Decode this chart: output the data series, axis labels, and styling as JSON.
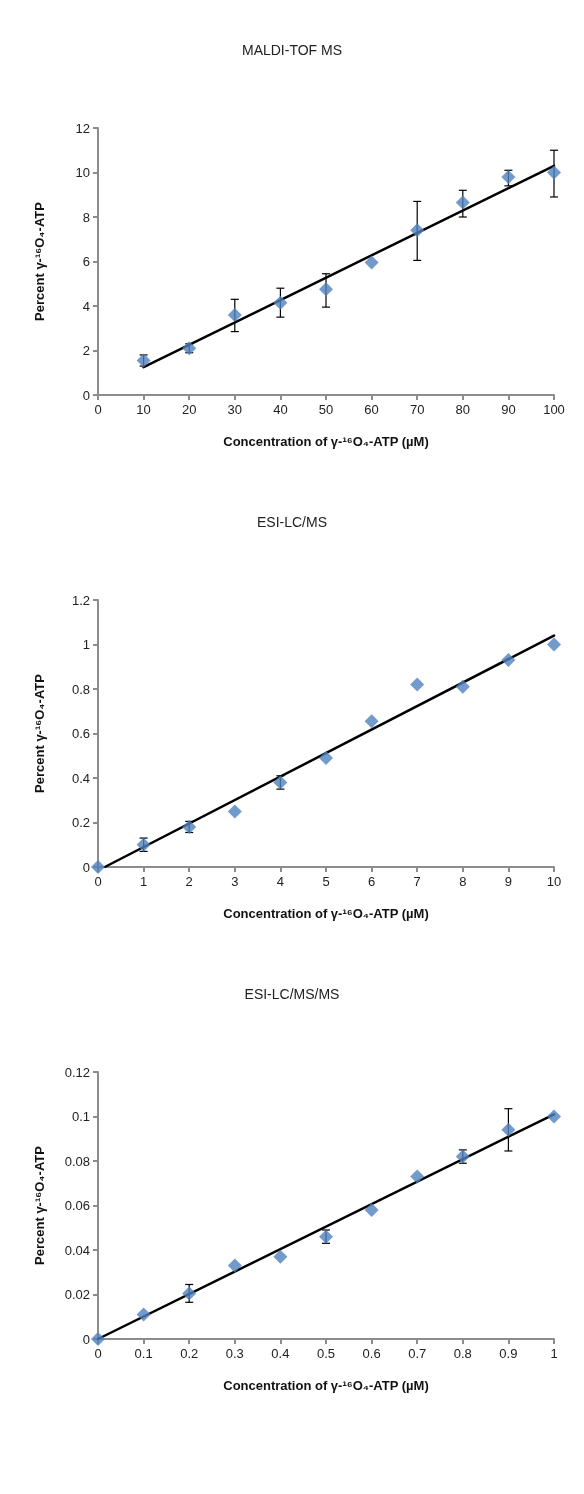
{
  "chart_data": [
    {
      "type": "scatter",
      "title": "MALDI-TOF MS",
      "xlabel": "Concentration of γ-¹⁶O₄-ATP (µM)",
      "ylabel": "Percent γ-¹⁶O₄-ATP",
      "xlim": [
        0,
        100
      ],
      "xticks": [
        0,
        10,
        20,
        30,
        40,
        50,
        60,
        70,
        80,
        90,
        100
      ],
      "ylim": [
        0,
        12
      ],
      "yticks": [
        0,
        2,
        4,
        6,
        8,
        10,
        12
      ],
      "grid": false,
      "series": [
        {
          "marker": "diamond",
          "color": "#4f81bd",
          "x": [
            10,
            20,
            30,
            40,
            50,
            60,
            70,
            80,
            90,
            100
          ],
          "values": [
            1.55,
            2.1,
            3.6,
            4.15,
            4.75,
            5.95,
            7.4,
            8.65,
            9.8,
            10.0
          ],
          "errors": [
            [
              1.3,
              1.8
            ],
            [
              1.9,
              2.3
            ],
            [
              2.85,
              4.3
            ],
            [
              3.5,
              4.8
            ],
            [
              3.95,
              5.45
            ],
            null,
            [
              6.05,
              8.7
            ],
            [
              8.0,
              9.2
            ],
            [
              9.4,
              10.1
            ],
            [
              8.9,
              11.0
            ]
          ]
        },
        {
          "type": "line",
          "marker": "none",
          "color": "#000000",
          "x": [
            10,
            100
          ],
          "values": [
            1.25,
            10.3
          ]
        }
      ]
    },
    {
      "type": "scatter",
      "title": "ESI-LC/MS",
      "xlabel": "Concentration of γ-¹⁶O₄-ATP (µM)",
      "ylabel": "Percent γ-¹⁶O₄-ATP",
      "xlim": [
        0,
        10
      ],
      "xticks": [
        0,
        1,
        2,
        3,
        4,
        5,
        6,
        7,
        8,
        9,
        10
      ],
      "ylim": [
        0,
        1.2
      ],
      "yticks": [
        0,
        0.2,
        0.4,
        0.6,
        0.8,
        1,
        1.2
      ],
      "grid": false,
      "series": [
        {
          "marker": "diamond",
          "color": "#4f81bd",
          "x": [
            0,
            1,
            2,
            3,
            4,
            5,
            6,
            7,
            8,
            9,
            10
          ],
          "values": [
            0,
            0.1,
            0.18,
            0.25,
            0.38,
            0.49,
            0.655,
            0.82,
            0.81,
            0.93,
            1.0
          ],
          "errors": [
            null,
            0.03,
            0.025,
            null,
            0.03,
            null,
            null,
            null,
            null,
            null,
            null
          ]
        },
        {
          "type": "line",
          "marker": "none",
          "color": "#000000",
          "x": [
            0.15,
            10
          ],
          "values": [
            0,
            1.04
          ]
        }
      ]
    },
    {
      "type": "scatter",
      "title": "ESI-LC/MS/MS",
      "xlabel": "Concentration of γ-¹⁶O₄-ATP (µM)",
      "ylabel": "Percent γ-¹⁶O₄-ATP",
      "xlim": [
        0,
        1
      ],
      "xticks": [
        0,
        0.1,
        0.2,
        0.3,
        0.4,
        0.5,
        0.6,
        0.7,
        0.8,
        0.9,
        1
      ],
      "ylim": [
        0,
        0.12
      ],
      "yticks": [
        0,
        0.02,
        0.04,
        0.06,
        0.08,
        0.1,
        0.12
      ],
      "grid": false,
      "series": [
        {
          "marker": "diamond",
          "color": "#4f81bd",
          "x": [
            0,
            0.1,
            0.2,
            0.3,
            0.4,
            0.5,
            0.6,
            0.7,
            0.8,
            0.9,
            1
          ],
          "values": [
            0,
            0.011,
            0.0205,
            0.033,
            0.037,
            0.046,
            0.058,
            0.073,
            0.082,
            0.094,
            0.1
          ],
          "errors": [
            null,
            null,
            [
              0.0165,
              0.0245
            ],
            null,
            null,
            0.003,
            null,
            null,
            0.003,
            [
              0.0845,
              0.1035
            ],
            null
          ]
        },
        {
          "type": "line",
          "marker": "none",
          "color": "#000000",
          "x": [
            0,
            1
          ],
          "values": [
            0,
            0.101
          ]
        }
      ]
    }
  ]
}
